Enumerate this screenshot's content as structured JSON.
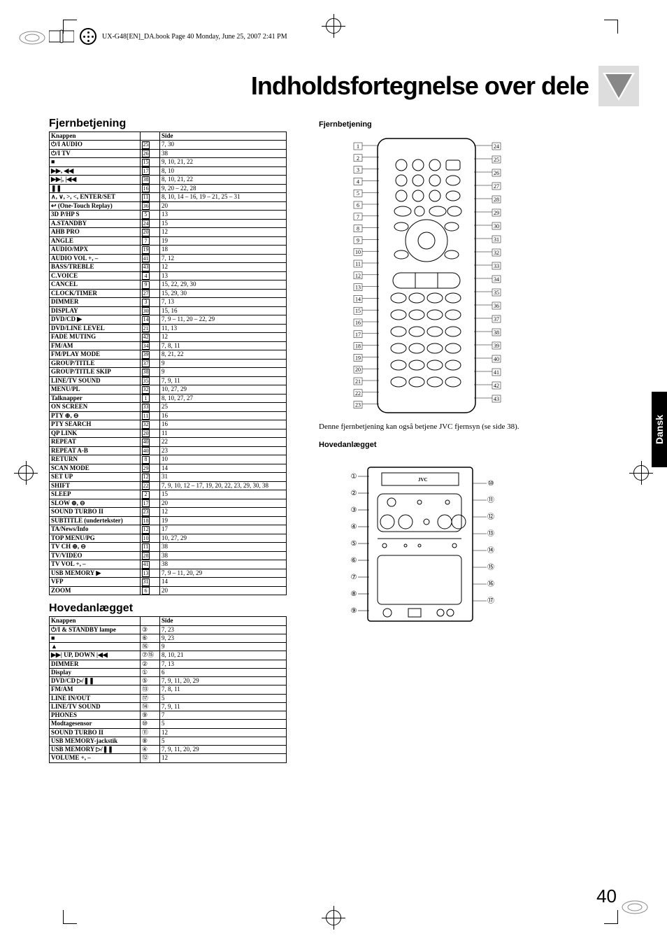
{
  "header_text": "UX-G48[EN]_DA.book  Page 40  Monday, June 25, 2007  2:41 PM",
  "title": "Indholdsfortegnelse over dele",
  "section_remote": "Fjernbetjening",
  "section_main": "Hovedanlægget",
  "col_knappen": "Knappen",
  "col_side": "Side",
  "remote_note": "Denne fjernbetjening kan også betjene JVC fjernsyn (se side 38).",
  "side_tab": "Dansk",
  "page_number": "40",
  "remote_table": [
    [
      "⏻/I AUDIO",
      "25",
      "7, 30"
    ],
    [
      "⏻/I TV",
      "26",
      "38"
    ],
    [
      "■",
      "15",
      "9, 10, 21, 22"
    ],
    [
      "▶▶, ◀◀",
      "17",
      "8, 10"
    ],
    [
      "▶▶|, |◀◀",
      "38",
      "8, 10, 21, 22"
    ],
    [
      "❚❚",
      "16",
      "9, 20 – 22, 28"
    ],
    [
      "∧, ∨, >, <, ENTER/SET",
      "11",
      "8, 10, 14 – 16, 19 – 21, 25 – 31"
    ],
    [
      "↩ (One-Touch Replay)",
      "36",
      "20"
    ],
    [
      "3D P/HP S",
      "5",
      "13"
    ],
    [
      "A.STANDBY",
      "24",
      "15"
    ],
    [
      "AHB PRO",
      "20",
      "12"
    ],
    [
      "ANGLE",
      "7",
      "19"
    ],
    [
      "AUDIO/MPX",
      "19",
      "18"
    ],
    [
      "AUDIO VOL +, –",
      "41",
      "7, 12"
    ],
    [
      "BASS/TREBLE",
      "43",
      "12"
    ],
    [
      "C.VOICE",
      "4",
      "13"
    ],
    [
      "CANCEL",
      "9",
      "15, 22, 29, 30"
    ],
    [
      "CLOCK/TIMER",
      "27",
      "15, 29, 30"
    ],
    [
      "DIMMER",
      "3",
      "7, 13"
    ],
    [
      "DISPLAY",
      "30",
      "15, 16"
    ],
    [
      "DVD/CD ▶",
      "14",
      "7, 9 – 11, 20 – 22, 29"
    ],
    [
      "DVD/LINE LEVEL",
      "21",
      "11, 13"
    ],
    [
      "FADE MUTING",
      "42",
      "12"
    ],
    [
      "FM/AM",
      "34",
      "7, 8, 11"
    ],
    [
      "FM/PLAY MODE",
      "39",
      "8, 21, 22"
    ],
    [
      "GROUP/TITLE",
      "37",
      "9"
    ],
    [
      "GROUP/TITLE SKIP",
      "38",
      "9"
    ],
    [
      "LINE/TV SOUND",
      "35",
      "7, 9, 11"
    ],
    [
      "MENU/PL",
      "32",
      "10, 27, 29"
    ],
    [
      "Talknapper",
      "1",
      "8, 10, 27, 27"
    ],
    [
      "ON SCREEN",
      "33",
      "25"
    ],
    [
      "PTY ⊕, ⊖",
      "11",
      "16"
    ],
    [
      "PTY SEARCH",
      "32",
      "16"
    ],
    [
      "QP LINK",
      "20",
      "11"
    ],
    [
      "REPEAT",
      "40",
      "22"
    ],
    [
      "REPEAT A-B",
      "40",
      "23"
    ],
    [
      "RETURN",
      "8",
      "10"
    ],
    [
      "SCAN MODE",
      "29",
      "14"
    ],
    [
      "SET UP",
      "12",
      "31"
    ],
    [
      "SHIFT",
      "22",
      "7, 9, 10, 12 – 17, 19, 20, 22, 23, 29, 30, 38"
    ],
    [
      "SLEEP",
      "2",
      "15"
    ],
    [
      "SLOW ⊕, ⊖",
      "17",
      "20"
    ],
    [
      "SOUND TURBO II",
      "23",
      "12"
    ],
    [
      "SUBTITLE (undertekster)",
      "18",
      "19"
    ],
    [
      "TA/News/Info",
      "12",
      "17"
    ],
    [
      "TOP MENU/PG",
      "10",
      "10, 27, 29"
    ],
    [
      "TV CH ⊕, ⊖",
      "11",
      "38"
    ],
    [
      "TV/VIDEO",
      "28",
      "38"
    ],
    [
      "TV VOL +, –",
      "41",
      "38"
    ],
    [
      "USB MEMORY ▶",
      "13",
      "7, 9 – 11, 20, 29"
    ],
    [
      "VFP",
      "31",
      "14"
    ],
    [
      "ZOOM",
      "6",
      "20"
    ]
  ],
  "main_table": [
    [
      "⏻/I & STANDBY lampe",
      "③",
      "7, 23"
    ],
    [
      "■",
      "⑥",
      "9, 23"
    ],
    [
      "▲",
      "⑯",
      "9"
    ],
    [
      "▶▶| UP, DOWN |◀◀",
      "⑦⑮",
      "8, 10, 21"
    ],
    [
      "DIMMER",
      "②",
      "7, 13"
    ],
    [
      "Display",
      "①",
      "6"
    ],
    [
      "DVD/CD ▷/❚❚",
      "⑤",
      "7, 9, 11, 20, 29"
    ],
    [
      "FM/AM",
      "⑬",
      "7, 8, 11"
    ],
    [
      "LINE IN/OUT",
      "⑰",
      "5"
    ],
    [
      "LINE/TV SOUND",
      "⑭",
      "7, 9, 11"
    ],
    [
      "PHONES",
      "⑨",
      "7"
    ],
    [
      "Modtagesensor",
      "⑩",
      "5"
    ],
    [
      "SOUND TURBO II",
      "⑪",
      "12"
    ],
    [
      "USB MEMORY-jackstik",
      "⑧",
      "5"
    ],
    [
      "USB MEMORY ▷/❚❚",
      "④",
      "7, 9, 11, 20, 29"
    ],
    [
      "VOLUME +, –",
      "⑫",
      "12"
    ]
  ],
  "remote_left": [
    "1",
    "2",
    "3",
    "4",
    "5",
    "6",
    "7",
    "8",
    "9",
    "10",
    "11",
    "12",
    "13",
    "14",
    "15",
    "16",
    "17",
    "18",
    "19",
    "20",
    "21",
    "22",
    "23"
  ],
  "remote_right": [
    "24",
    "25",
    "26",
    "27",
    "28",
    "29",
    "30",
    "31",
    "32",
    "33",
    "34",
    "35",
    "36",
    "37",
    "38",
    "39",
    "40",
    "41",
    "42",
    "43"
  ],
  "main_left": [
    "①",
    "②",
    "③",
    "④",
    "⑤",
    "⑥",
    "⑦",
    "⑧",
    "⑨"
  ],
  "main_right": [
    "⑩",
    "⑪",
    "⑫",
    "⑬",
    "⑭",
    "⑮",
    "⑯",
    "⑰"
  ]
}
